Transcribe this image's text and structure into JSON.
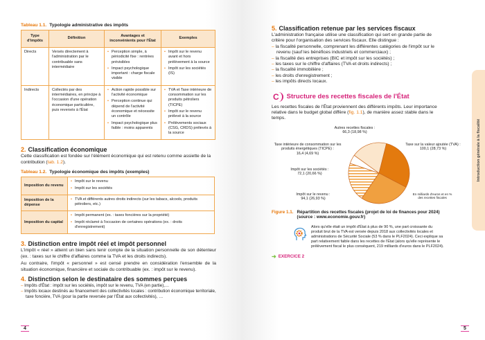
{
  "left": {
    "table1": {
      "num": "Tableau 1.1.",
      "title": "Typologie administrative des impôts",
      "headers": [
        "Type d'impôts",
        "Définition",
        "Avantages et inconvénients pour l'État",
        "Exemples"
      ],
      "rows": [
        {
          "type": "Directs",
          "def": "Versés directement à l'administration par le contribuable sans intermédiaire",
          "adv": [
            "Perception simple, à périodicité fixe : rentrées prévisibles",
            "Impact psychologique important : charge fiscale visible"
          ],
          "ex": [
            "Impôt sur le revenu avant et hors prélèvement à la source",
            "Impôt sur les sociétés (IS)"
          ]
        },
        {
          "type": "Indirects",
          "def": "Collectés par des intermédiaires, en principe à l'occasion d'une opération économique particulière, puis reversés à l'État",
          "adv": [
            "Action rapide possible sur l'activité économique",
            "Perception continue qui dépend de l'activité économique et nécessite un contrôle",
            "Impact psychologique plus faible : moins apparents"
          ],
          "ex": [
            "TVA et Taxe intérieure de consommation sur les produits pétroliers (TICPE)",
            "Impôt sur le revenu prélevé à la source",
            "Prélèvements sociaux (CSG, CRDS) prélevés à la source"
          ]
        }
      ]
    },
    "s2": {
      "num": "2.",
      "title": "Classification économique",
      "body": "Cette classification est fondée sur l'élément économique qui est retenu comme assiette de la contribution (",
      "ref": "tab. 1.2",
      "end": ")."
    },
    "table2": {
      "num": "Tableau 1.2.",
      "title": "Typologie économique des impôts (exemples)",
      "rows": [
        {
          "label": "Imposition du revenu",
          "items": [
            "Impôt sur le revenu",
            "Impôt sur les sociétés"
          ]
        },
        {
          "label": "Imposition de la dépense",
          "items": [
            "TVA et différents autres droits indirects (sur les tabacs, alcools, produits pétroliers, etc.)"
          ]
        },
        {
          "label": "Imposition du capital",
          "items": [
            "Impôt permanent (ex. : taxes foncières sur la propriété)",
            "Impôt réclamé à l'occasion de certaines opérations (ex. : droits d'enregistrement)"
          ]
        }
      ]
    },
    "s3": {
      "num": "3.",
      "title": "Distinction entre impôt réel et impôt personnel",
      "p1": "L'impôt « réel » atteint un bien sans tenir compte de la situation personnelle de son détenteur (ex. : taxes sur le chiffre d'affaires comme la TVA et les droits indirects).",
      "p2": "Au contraire, l'impôt « personnel » est censé prendre en considération l'ensemble de la situation économique, financière et sociale du contribuable (ex. : impôt sur le revenu)."
    },
    "s4": {
      "num": "4.",
      "title": "Distinction selon le destinataire des sommes perçues",
      "items": [
        "Impôts d'État : impôt sur les sociétés, impôt sur le revenu, TVA (en partie),…",
        "Impôts locaux destinés au financement des collectivités locales : contribution économique territoriale, taxe foncière, TVA (pour la partie reversée par l'État aux collectivités), …"
      ]
    },
    "page_number": "4"
  },
  "right": {
    "s5": {
      "num": "5.",
      "title": "Classification retenue par les services fiscaux",
      "intro": "L'administration française utilise une classification qui sert en grande partie de critère pour l'organisation des services fiscaux. Elle distingue :",
      "items": [
        "la fiscalité personnelle, comprenant les différentes catégories de l'impôt sur le revenu (sauf les bénéfices industriels et commerciaux) ;",
        "la fiscalité des entreprises (BIC et impôt sur les sociétés) ;",
        "les taxes sur le chiffre d'affaires (TVA et droits indirects) ;",
        "la fiscalité immobilière ;",
        "les droits d'enregistrement ;",
        "les impôts directs locaux."
      ]
    },
    "sC": {
      "letter": "C",
      "title": "Structure des recettes fiscales de l'État",
      "body": "Les recettes fiscales de l'État proviennent des différents impôts. Leur importance relative dans le budget global diffère (",
      "ref": "fig. 1.1",
      "end": "), de manière assez stable dans le temps."
    },
    "figure": {
      "num": "Figure 1.1.",
      "caption": "Répartition des recettes fiscales (projet de loi de finances pour 2024) (source : www.economie.gouv.fr)",
      "unit_note": "En milliards d'euros et en % des recettes fiscales"
    },
    "note": "Alors qu'elle était un impôt d'État à plus de 90 %, une part croissante du produit brut de la TVA est versée depuis 2018 aux collectivités locales et administrations de Sécurité Sociale (53 % dans le PLF2024). Ceci explique sa part relativement faible dans les recettes de l'État (alors qu'elle représente le prélèvement fiscal le plus conséquent, 219 milliards d'euros dans le PLF2024).",
    "exercise": "EXERCICE 2",
    "side_tab": "Introduction générale à la fiscalité",
    "page_number": "5"
  },
  "chart_data": {
    "type": "pie",
    "unit": "En milliards d'euros et en % des recettes fiscales",
    "slices": [
      {
        "label": "Taxe sur la valeur ajoutée (TVA) :",
        "value": 100.1,
        "pct": 28.73,
        "text": "100,1 (28,73 %)",
        "color": "#e37a0e",
        "pattern": "solid"
      },
      {
        "label": "Impôt sur le revenu :",
        "value": 94.1,
        "pct": 26.93,
        "text": "94,1 (26,93 %)",
        "color": "#f0a040",
        "pattern": "solid"
      },
      {
        "label": "Impôt sur les sociétés :",
        "value": 72.1,
        "pct": 20.66,
        "text": "72,1 (20,66 %)",
        "color": "#f0a040",
        "pattern": "hatched"
      },
      {
        "label": "Taxe intérieure de consommation sur les produits énergétiques (TICPE) :",
        "value": 16.4,
        "pct": 4.69,
        "text": "16,4 (4,69 %)",
        "color": "#ffffff",
        "pattern": "solid"
      },
      {
        "label": "Autres recettes fiscales :",
        "value": 66.3,
        "pct": 18.98,
        "text": "66,3 (18,98 %)",
        "color": "#fbe6cc",
        "pattern": "solid"
      }
    ]
  }
}
